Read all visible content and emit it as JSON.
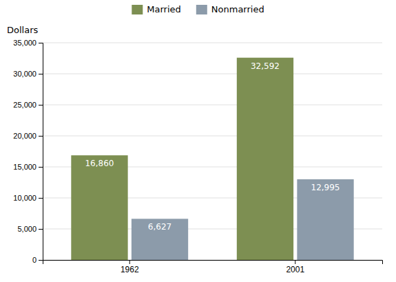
{
  "chart_data": {
    "type": "bar",
    "categories": [
      "1962",
      "2001"
    ],
    "series": [
      {
        "name": "Married",
        "color": "#7d8f52",
        "values": [
          16860,
          32592
        ],
        "value_labels": [
          "16,860",
          "32,592"
        ]
      },
      {
        "name": "Nonmarried",
        "color": "#8c9baa",
        "values": [
          6627,
          12995
        ],
        "value_labels": [
          "6,627",
          "12,995"
        ]
      }
    ],
    "y_label": "Dollars",
    "ylim": [
      0,
      35000
    ],
    "yticks": [
      0,
      {
        "value": 5000,
        "label": "5,000"
      },
      {
        "value": 10000,
        "label": "10,000"
      },
      {
        "value": 15000,
        "label": "15,000"
      },
      {
        "value": 20000,
        "label": "20,000"
      },
      {
        "value": 25000,
        "label": "25,000"
      },
      {
        "value": 30000,
        "label": "30,000"
      },
      {
        "value": 35000,
        "label": "35,000"
      }
    ],
    "grid": true,
    "legend": "top",
    "data_labels": true
  }
}
